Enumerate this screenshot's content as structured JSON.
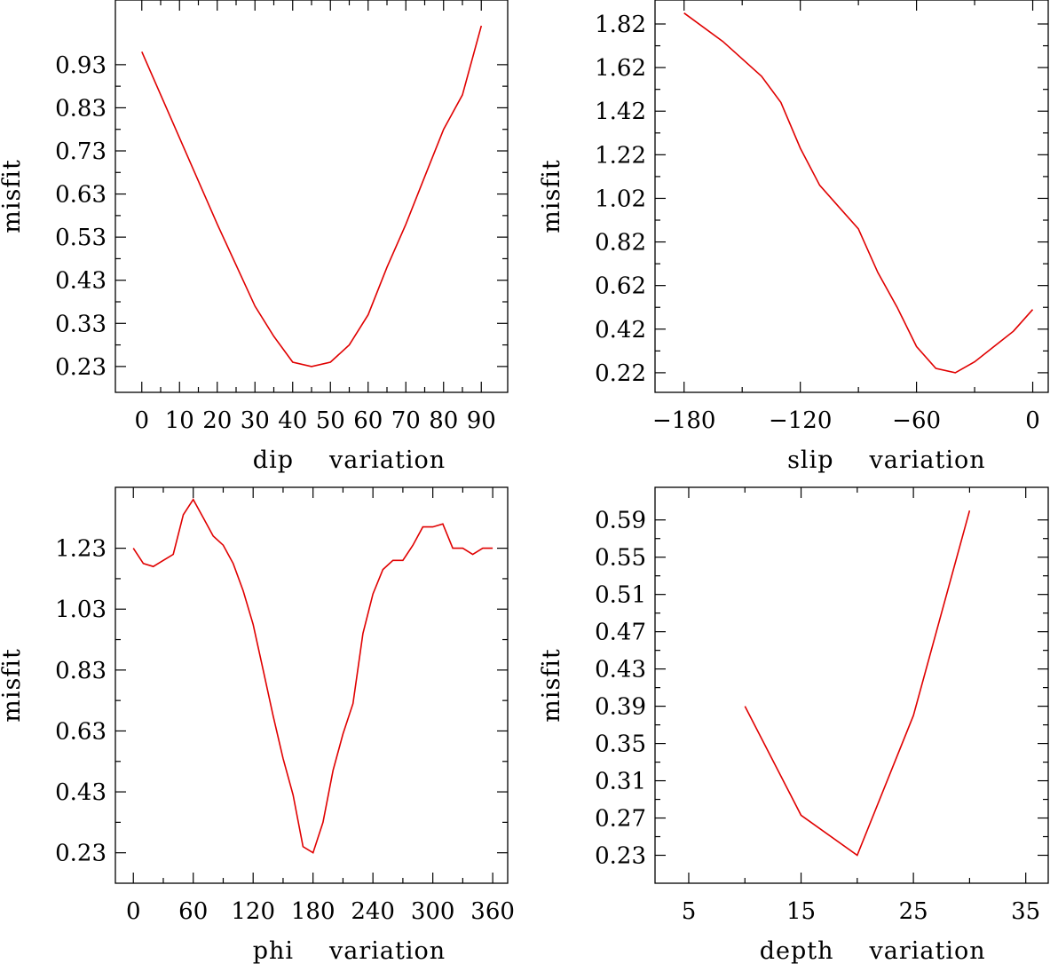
{
  "chart_data": [
    {
      "type": "line",
      "xlabel_words": [
        "dip",
        "variation"
      ],
      "ylabel": "misfit",
      "xlim": [
        -7,
        97
      ],
      "ylim": [
        0.17,
        1.08
      ],
      "xticks": [
        0,
        10,
        20,
        30,
        40,
        50,
        60,
        70,
        80,
        90
      ],
      "yticks": [
        0.23,
        0.33,
        0.43,
        0.53,
        0.63,
        0.73,
        0.83,
        0.93
      ],
      "ytick_labels": [
        "0.23",
        "0.33",
        "0.43",
        "0.53",
        "0.63",
        "0.73",
        "0.83",
        "0.93"
      ],
      "series": [
        {
          "name": "misfit",
          "color": "#e00000",
          "x": [
            0,
            10,
            20,
            30,
            35,
            40,
            45,
            50,
            55,
            60,
            65,
            70,
            75,
            80,
            85,
            90
          ],
          "y": [
            0.96,
            0.76,
            0.56,
            0.37,
            0.3,
            0.24,
            0.23,
            0.24,
            0.28,
            0.35,
            0.46,
            0.56,
            0.67,
            0.78,
            0.86,
            1.02
          ]
        }
      ]
    },
    {
      "type": "line",
      "xlabel_words": [
        "slip",
        "variation"
      ],
      "ylabel": "misfit",
      "xlim": [
        -195,
        8
      ],
      "ylim": [
        0.13,
        1.93
      ],
      "xticks": [
        -180,
        -120,
        -60,
        0
      ],
      "xtick_labels": [
        "−180",
        "−120",
        "−60",
        "0"
      ],
      "yticks": [
        0.22,
        0.42,
        0.62,
        0.82,
        1.02,
        1.22,
        1.42,
        1.62,
        1.82
      ],
      "ytick_labels": [
        "0.22",
        "0.42",
        "0.62",
        "0.82",
        "1.02",
        "1.22",
        "1.42",
        "1.62",
        "1.82"
      ],
      "series": [
        {
          "name": "misfit",
          "color": "#e00000",
          "x": [
            -180,
            -160,
            -140,
            -130,
            -120,
            -110,
            -100,
            -90,
            -80,
            -70,
            -60,
            -50,
            -40,
            -30,
            -20,
            -10,
            0
          ],
          "y": [
            1.87,
            1.74,
            1.58,
            1.46,
            1.25,
            1.08,
            0.98,
            0.88,
            0.68,
            0.52,
            0.34,
            0.24,
            0.22,
            0.27,
            0.34,
            0.41,
            0.51
          ]
        }
      ]
    },
    {
      "type": "line",
      "xlabel_words": [
        "phi",
        "variation"
      ],
      "ylabel": "misfit",
      "xlim": [
        -18,
        375
      ],
      "ylim": [
        0.13,
        1.43
      ],
      "xticks": [
        0,
        60,
        120,
        180,
        240,
        300,
        360
      ],
      "yticks": [
        0.23,
        0.43,
        0.63,
        0.83,
        1.03,
        1.23
      ],
      "ytick_labels": [
        "0.23",
        "0.43",
        "0.63",
        "0.83",
        "1.03",
        "1.23"
      ],
      "series": [
        {
          "name": "misfit",
          "color": "#e00000",
          "x": [
            0,
            10,
            20,
            30,
            40,
            50,
            60,
            70,
            80,
            90,
            100,
            110,
            120,
            130,
            140,
            150,
            160,
            170,
            180,
            190,
            200,
            210,
            220,
            230,
            240,
            250,
            260,
            270,
            280,
            290,
            300,
            310,
            320,
            330,
            340,
            350,
            360
          ],
          "y": [
            1.23,
            1.18,
            1.17,
            1.19,
            1.21,
            1.34,
            1.39,
            1.33,
            1.27,
            1.24,
            1.18,
            1.09,
            0.98,
            0.83,
            0.68,
            0.54,
            0.42,
            0.25,
            0.23,
            0.33,
            0.5,
            0.62,
            0.72,
            0.95,
            1.08,
            1.16,
            1.19,
            1.19,
            1.24,
            1.3,
            1.3,
            1.31,
            1.23,
            1.23,
            1.21,
            1.23,
            1.23
          ]
        }
      ]
    },
    {
      "type": "line",
      "xlabel_words": [
        "depth",
        "variation"
      ],
      "ylabel": "misfit",
      "xlim": [
        2,
        37
      ],
      "ylim": [
        0.2,
        0.625
      ],
      "xticks": [
        5,
        15,
        25,
        35
      ],
      "yticks": [
        0.23,
        0.27,
        0.31,
        0.35,
        0.39,
        0.43,
        0.47,
        0.51,
        0.55,
        0.59
      ],
      "ytick_labels": [
        "0.23",
        "0.27",
        "0.31",
        "0.35",
        "0.39",
        "0.43",
        "0.47",
        "0.51",
        "0.55",
        "0.59"
      ],
      "series": [
        {
          "name": "misfit",
          "color": "#e00000",
          "x": [
            10,
            15,
            20,
            25,
            30
          ],
          "y": [
            0.39,
            0.273,
            0.23,
            0.38,
            0.6
          ]
        }
      ]
    }
  ]
}
